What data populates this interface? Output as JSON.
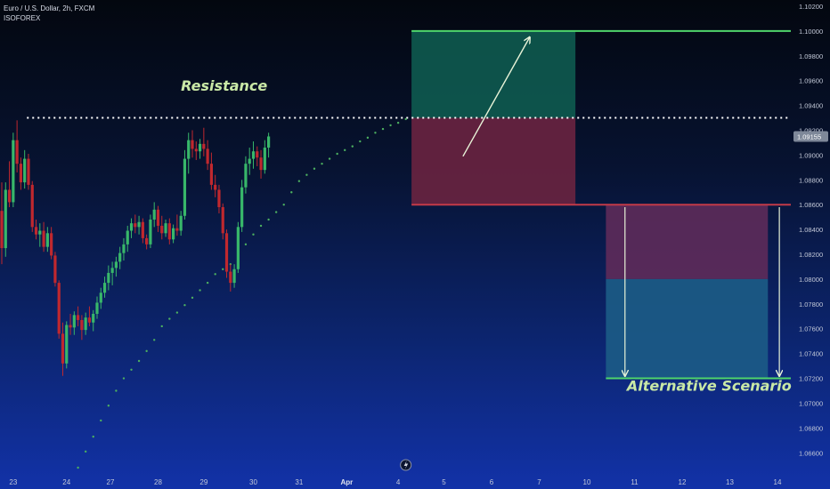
{
  "header": {
    "title": "Euro / U.S. Dollar, 2h, FXCM",
    "author": "ISOFOREX"
  },
  "colors": {
    "bull": "#38b76a",
    "bear": "#c0282e",
    "profit_zone": "#0f5f52",
    "loss_zone": "#6a2440",
    "alt_loss_zone": "#5e2b5a",
    "alt_profit_zone": "#1c5c86",
    "green_line": "#4fd66b",
    "red_line": "#c23a48",
    "dot_trail": "#4caf60",
    "resistance": "#ffffff",
    "annotation": "#c9e8a6",
    "price_tag_bg": "#7e8899"
  },
  "chart_data": {
    "type": "candlestick",
    "title": "Euro / U.S. Dollar, 2h, FXCM",
    "ylim": [
      1.0648,
      1.1025
    ],
    "y_ticks": [
      "1.06600",
      "1.06800",
      "1.07000",
      "1.07200",
      "1.07400",
      "1.07600",
      "1.07800",
      "1.08000",
      "1.08200",
      "1.08400",
      "1.08600",
      "1.08800",
      "1.09000",
      "1.09200",
      "1.09400",
      "1.09600",
      "1.09800",
      "1.10000",
      "1.10200"
    ],
    "y_tick_values": [
      1.066,
      1.068,
      1.07,
      1.072,
      1.074,
      1.076,
      1.078,
      1.08,
      1.082,
      1.084,
      1.086,
      1.088,
      1.09,
      1.092,
      1.094,
      1.096,
      1.098,
      1.1,
      1.102
    ],
    "x_ticks": [
      "23",
      "24",
      "27",
      "28",
      "29",
      "30",
      "31",
      "Apr",
      "4",
      "5",
      "6",
      "7",
      "10",
      "11",
      "12",
      "13",
      "14"
    ],
    "x_tick_index": [
      3,
      17,
      28.5,
      41,
      53,
      66,
      78,
      90.5,
      104,
      116,
      128.5,
      141,
      153.5,
      166,
      178.5,
      191,
      203.5
    ],
    "bold_x_tick": "Apr",
    "current_price": 1.0915,
    "current_price_label": "1.09155",
    "candles": [
      [
        1.0855,
        1.0878,
        1.0812,
        1.0825
      ],
      [
        1.0825,
        1.0878,
        1.0818,
        1.0872
      ],
      [
        1.0872,
        1.0895,
        1.0858,
        1.0862
      ],
      [
        1.0862,
        1.0918,
        1.0858,
        1.0912
      ],
      [
        1.0912,
        1.0928,
        1.0886,
        1.0893
      ],
      [
        1.0893,
        1.0898,
        1.0872,
        1.0878
      ],
      [
        1.0878,
        1.0904,
        1.0873,
        1.0897
      ],
      [
        1.0897,
        1.0901,
        1.0872,
        1.0876
      ],
      [
        1.0876,
        1.0879,
        1.0838,
        1.0842
      ],
      [
        1.0842,
        1.0848,
        1.0832,
        1.0836
      ],
      [
        1.0836,
        1.0845,
        1.0826,
        1.0839
      ],
      [
        1.0839,
        1.0846,
        1.0822,
        1.0826
      ],
      [
        1.0826,
        1.0842,
        1.0822,
        1.0837
      ],
      [
        1.0837,
        1.0842,
        1.0816,
        1.0819
      ],
      [
        1.0819,
        1.0822,
        1.0794,
        1.0797
      ],
      [
        1.0797,
        1.0799,
        1.0752,
        1.0756
      ],
      [
        1.0756,
        1.0765,
        1.0722,
        1.0732
      ],
      [
        1.0732,
        1.0766,
        1.0728,
        1.0763
      ],
      [
        1.0763,
        1.0772,
        1.0755,
        1.0761
      ],
      [
        1.0761,
        1.0774,
        1.0755,
        1.0771
      ],
      [
        1.0771,
        1.0778,
        1.0762,
        1.0767
      ],
      [
        1.0767,
        1.0771,
        1.0751,
        1.0759
      ],
      [
        1.0759,
        1.0773,
        1.0755,
        1.0769
      ],
      [
        1.0769,
        1.0778,
        1.0762,
        1.0765
      ],
      [
        1.0765,
        1.0775,
        1.0758,
        1.0772
      ],
      [
        1.0772,
        1.0786,
        1.0768,
        1.0781
      ],
      [
        1.0781,
        1.0793,
        1.0776,
        1.0789
      ],
      [
        1.0789,
        1.0802,
        1.0785,
        1.0797
      ],
      [
        1.0797,
        1.0811,
        1.0791,
        1.0805
      ],
      [
        1.0805,
        1.0814,
        1.0795,
        1.0809
      ],
      [
        1.0809,
        1.0818,
        1.0802,
        1.0814
      ],
      [
        1.0814,
        1.0826,
        1.0808,
        1.0821
      ],
      [
        1.0821,
        1.0833,
        1.0815,
        1.0828
      ],
      [
        1.0828,
        1.0843,
        1.0822,
        1.0839
      ],
      [
        1.0839,
        1.0849,
        1.0833,
        1.0845
      ],
      [
        1.0845,
        1.0852,
        1.0837,
        1.0842
      ],
      [
        1.0842,
        1.0851,
        1.0836,
        1.0846
      ],
      [
        1.0846,
        1.0849,
        1.0829,
        1.0833
      ],
      [
        1.0833,
        1.0836,
        1.0824,
        1.0828
      ],
      [
        1.0828,
        1.0852,
        1.0825,
        1.0848
      ],
      [
        1.0848,
        1.0862,
        1.0842,
        1.0856
      ],
      [
        1.0856,
        1.0859,
        1.0838,
        1.0843
      ],
      [
        1.0843,
        1.0851,
        1.0832,
        1.0837
      ],
      [
        1.0837,
        1.0848,
        1.0834,
        1.0845
      ],
      [
        1.0845,
        1.0849,
        1.0828,
        1.0832
      ],
      [
        1.0832,
        1.0844,
        1.0829,
        1.0841
      ],
      [
        1.0841,
        1.0852,
        1.0835,
        1.0839
      ],
      [
        1.0839,
        1.0855,
        1.0835,
        1.0851
      ],
      [
        1.0851,
        1.0904,
        1.0848,
        1.0897
      ],
      [
        1.0897,
        1.0918,
        1.0885,
        1.0912
      ],
      [
        1.0912,
        1.092,
        1.0898,
        1.0905
      ],
      [
        1.0905,
        1.0911,
        1.0896,
        1.0903
      ],
      [
        1.0903,
        1.0913,
        1.0897,
        1.0909
      ],
      [
        1.0909,
        1.0922,
        1.0899,
        1.0905
      ],
      [
        1.0905,
        1.0912,
        1.0888,
        1.0893
      ],
      [
        1.0893,
        1.0902,
        1.0872,
        1.0876
      ],
      [
        1.0876,
        1.0884,
        1.0866,
        1.0872
      ],
      [
        1.0872,
        1.0876,
        1.0853,
        1.0858
      ],
      [
        1.0858,
        1.0861,
        1.0832,
        1.0837
      ],
      [
        1.0837,
        1.084,
        1.0801,
        1.0806
      ],
      [
        1.0806,
        1.0812,
        1.079,
        1.0797
      ],
      [
        1.0797,
        1.0812,
        1.0793,
        1.0808
      ],
      [
        1.0808,
        1.0846,
        1.0805,
        1.0842
      ],
      [
        1.0842,
        1.088,
        1.0838,
        1.0874
      ],
      [
        1.0874,
        1.0899,
        1.0869,
        1.0893
      ],
      [
        1.0893,
        1.0906,
        1.0884,
        1.0897
      ],
      [
        1.0897,
        1.0911,
        1.0889,
        1.0903
      ],
      [
        1.0903,
        1.0907,
        1.0891,
        1.0898
      ],
      [
        1.0898,
        1.0904,
        1.0881,
        1.0888
      ],
      [
        1.0888,
        1.0912,
        1.0885,
        1.0906
      ],
      [
        1.0906,
        1.0918,
        1.0898,
        1.0915
      ]
    ],
    "dot_trail": [
      [
        20,
        1.0648
      ],
      [
        22,
        1.0661
      ],
      [
        24,
        1.0673
      ],
      [
        26,
        1.0686
      ],
      [
        28,
        1.0698
      ],
      [
        30,
        1.071
      ],
      [
        32,
        1.072
      ],
      [
        34,
        1.0727
      ],
      [
        36,
        1.0734
      ],
      [
        38,
        1.0742
      ],
      [
        40,
        1.0751
      ],
      [
        42,
        1.0762
      ],
      [
        44,
        1.0768
      ],
      [
        46,
        1.0773
      ],
      [
        48,
        1.0779
      ],
      [
        50,
        1.0785
      ],
      [
        52,
        1.0791
      ],
      [
        54,
        1.0797
      ],
      [
        56,
        1.0804
      ],
      [
        58,
        1.0808
      ],
      [
        60,
        1.0812
      ],
      [
        62,
        1.082
      ],
      [
        64,
        1.0828
      ],
      [
        66,
        1.0836
      ],
      [
        68,
        1.0843
      ],
      [
        70,
        1.0848
      ],
      [
        72,
        1.0854
      ],
      [
        74,
        1.086
      ],
      [
        76,
        1.087
      ],
      [
        78,
        1.0879
      ],
      [
        80,
        1.0884
      ],
      [
        82,
        1.0889
      ],
      [
        84,
        1.0893
      ],
      [
        86,
        1.0897
      ],
      [
        88,
        1.0901
      ],
      [
        90,
        1.0904
      ],
      [
        92,
        1.0907
      ],
      [
        94,
        1.0911
      ],
      [
        96,
        1.0914
      ],
      [
        98,
        1.0918
      ],
      [
        100,
        1.0921
      ],
      [
        102,
        1.0924
      ],
      [
        104,
        1.0926
      ],
      [
        106,
        1.0929
      ]
    ],
    "levels": {
      "resistance": 1.093,
      "entry": 1.086,
      "target": 1.1,
      "alt_target": 1.072,
      "alt_mid": 1.08
    },
    "zones": {
      "long_x_range": [
        107.5,
        150.5
      ],
      "alt_x_range": [
        158.5,
        201
      ]
    },
    "annotations": {
      "resistance_label": "Resistance",
      "alternative_label": "Alternative Scenario"
    }
  }
}
